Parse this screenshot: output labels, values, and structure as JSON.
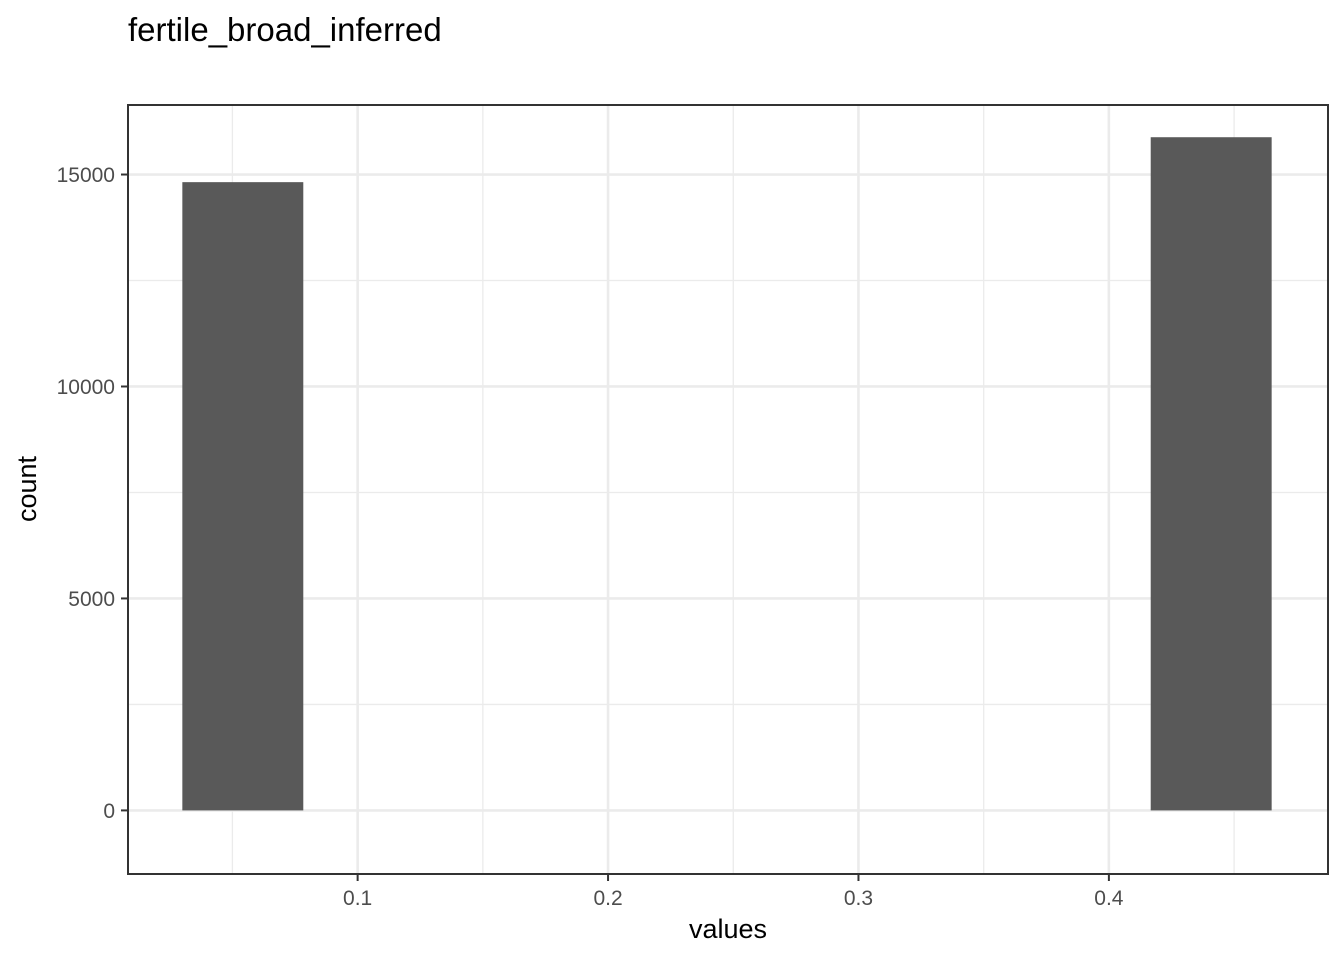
{
  "chart_data": {
    "type": "bar",
    "title": "fertile_broad_inferred",
    "xlabel": "values",
    "ylabel": "count",
    "xlim": [
      0.0083,
      0.4875
    ],
    "ylim": [
      -1500,
      16640
    ],
    "x_ticks": [
      0.1,
      0.2,
      0.3,
      0.4
    ],
    "x_tick_labels": [
      "0.1",
      "0.2",
      "0.3",
      "0.4"
    ],
    "y_ticks": [
      0,
      5000,
      10000,
      15000
    ],
    "y_tick_labels": [
      "0",
      "5000",
      "10000",
      "15000"
    ],
    "bars": [
      {
        "x_start": 0.03,
        "x_end": 0.0783,
        "value": 14820
      },
      {
        "x_start": 0.4167,
        "x_end": 0.465,
        "value": 15880
      }
    ],
    "bar_color": "#595959",
    "grid": true,
    "legend": "none"
  }
}
